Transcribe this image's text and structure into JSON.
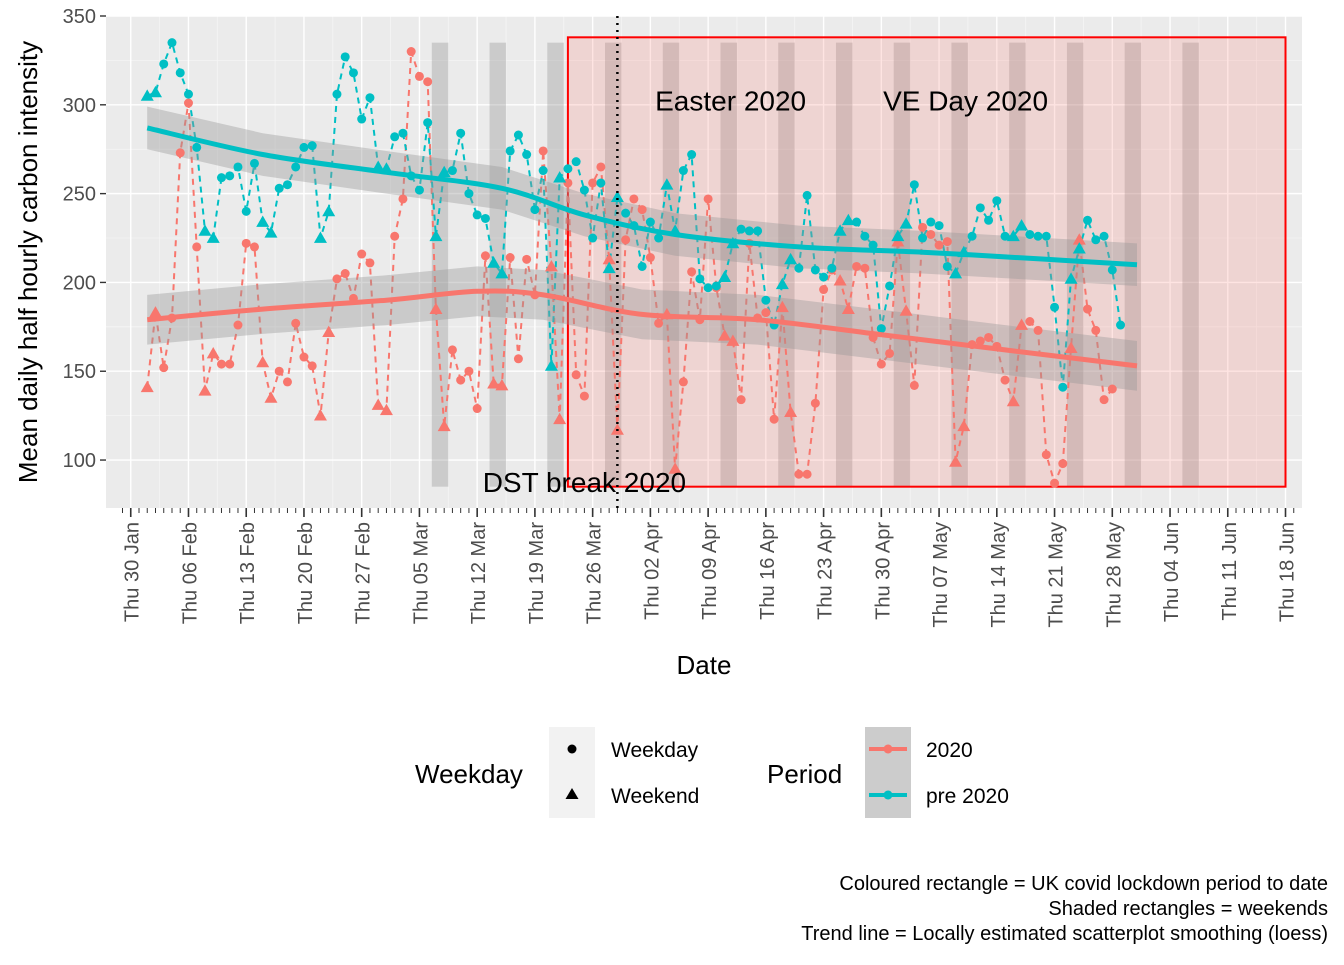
{
  "chart_data": {
    "type": "line",
    "x_axis": {
      "label": "Date",
      "range": [
        "2020-01-27",
        "2020-06-20"
      ],
      "ticks": [
        "2020-01-30",
        "2020-02-06",
        "2020-02-13",
        "2020-02-20",
        "2020-02-27",
        "2020-03-05",
        "2020-03-12",
        "2020-03-19",
        "2020-03-26",
        "2020-04-02",
        "2020-04-09",
        "2020-04-16",
        "2020-04-23",
        "2020-04-30",
        "2020-05-07",
        "2020-05-14",
        "2020-05-21",
        "2020-05-28",
        "2020-06-04",
        "2020-06-11",
        "2020-06-18"
      ],
      "tick_labels": [
        "Thu 30 Jan",
        "Thu 06 Feb",
        "Thu 13 Feb",
        "Thu 20 Feb",
        "Thu 27 Feb",
        "Thu 05 Mar",
        "Thu 12 Mar",
        "Thu 19 Mar",
        "Thu 26 Mar",
        "Thu 02 Apr",
        "Thu 09 Apr",
        "Thu 16 Apr",
        "Thu 23 Apr",
        "Thu 30 Apr",
        "Thu 07 May",
        "Thu 14 May",
        "Thu 21 May",
        "Thu 28 May",
        "Thu 04 Jun",
        "Thu 11 Jun",
        "Thu 18 Jun"
      ]
    },
    "y_axis": {
      "label": "Mean daily half hourly carbon intensity",
      "range": [
        73,
        350
      ],
      "ticks": [
        100,
        150,
        200,
        250,
        300,
        350
      ],
      "tick_labels": [
        "100",
        "150",
        "200",
        "250",
        "300",
        "350"
      ]
    },
    "grid": true,
    "start_date": "2020-02-01",
    "series": [
      {
        "name": "2020",
        "color": "#F8766D",
        "values": [
          141,
          183,
          152,
          180,
          273,
          301,
          220,
          139,
          160,
          154,
          154,
          176,
          222,
          220,
          155,
          135,
          150,
          144,
          177,
          158,
          153,
          125,
          172,
          202,
          205,
          191,
          216,
          211,
          131,
          128,
          226,
          247,
          330,
          316,
          313,
          185,
          119,
          162,
          145,
          150,
          129,
          215,
          143,
          142,
          214,
          157,
          213,
          193,
          274,
          209,
          123,
          256,
          148,
          136,
          256,
          265,
          213,
          117,
          224,
          247,
          241,
          214,
          177,
          182,
          95,
          144,
          206,
          179,
          247,
          197,
          170,
          167,
          134,
          222,
          180,
          183,
          123,
          186,
          127,
          92,
          92,
          132,
          196,
          207,
          201,
          185,
          209,
          208,
          169,
          154,
          160,
          223,
          184,
          142,
          231,
          227,
          221,
          223,
          99,
          119,
          165,
          167,
          169,
          164,
          145,
          133,
          176,
          178,
          173,
          103,
          87,
          98,
          163,
          224,
          185,
          173,
          134,
          140
        ]
      },
      {
        "name": "pre 2020",
        "color": "#00BFC4",
        "values": [
          305,
          307,
          323,
          335,
          318,
          306,
          276,
          229,
          225,
          259,
          260,
          265,
          240,
          267,
          234,
          228,
          253,
          255,
          265,
          276,
          277,
          225,
          240,
          306,
          327,
          318,
          292,
          304,
          265,
          264,
          282,
          284,
          260,
          252,
          290,
          226,
          262,
          263,
          284,
          250,
          238,
          236,
          211,
          205,
          274,
          283,
          272,
          241,
          263,
          153,
          259,
          264,
          268,
          252,
          225,
          256,
          208,
          248,
          239,
          232,
          209,
          234,
          225,
          255,
          229,
          263,
          272,
          202,
          197,
          198,
          203,
          222,
          230,
          229,
          229,
          190,
          176,
          199,
          213,
          208,
          249,
          207,
          203,
          208,
          229,
          235,
          234,
          226,
          221,
          174,
          198,
          226,
          233,
          255,
          225,
          234,
          232,
          209,
          205,
          217,
          226,
          242,
          235,
          246,
          226,
          226,
          232,
          227,
          226,
          226,
          186,
          141,
          202,
          219,
          235,
          224,
          226,
          207,
          176
        ]
      }
    ],
    "point_shapes": {
      "weekday": "circle",
      "weekend": "triangle"
    },
    "trend_lines": {
      "method": "loess",
      "2020": {
        "x": [
          "2020-02-01",
          "2020-02-15",
          "2020-03-01",
          "2020-03-12",
          "2020-03-20",
          "2020-04-01",
          "2020-04-15",
          "2020-05-01",
          "2020-05-15",
          "2020-05-31"
        ],
        "y": [
          179,
          185,
          190,
          195,
          193,
          182,
          179,
          170,
          162,
          153
        ]
      },
      "pre 2020": {
        "x": [
          "2020-02-01",
          "2020-02-15",
          "2020-03-01",
          "2020-03-15",
          "2020-03-25",
          "2020-04-05",
          "2020-04-20",
          "2020-05-05",
          "2020-05-20",
          "2020-05-31"
        ],
        "y": [
          287,
          272,
          262,
          253,
          238,
          227,
          220,
          217,
          213,
          210
        ]
      }
    },
    "lockdown_period": {
      "start": "2020-03-23",
      "end": "2020-06-18",
      "y_range": [
        85,
        338
      ]
    },
    "weekend_bands": {
      "first_saturday": "2020-03-07",
      "last_saturday": "2020-06-06",
      "y_range": [
        85,
        335
      ]
    },
    "dst_break": "2020-03-29",
    "annotations": [
      {
        "text": "Easter 2020",
        "x": "2020-04-05",
        "y": 302
      },
      {
        "text": "VE Day 2020",
        "x": "2020-05-03",
        "y": 302
      },
      {
        "text": "DST break 2020",
        "x": "2020-03-25",
        "y": 87
      }
    ],
    "legends": {
      "shape": {
        "title": "Weekday",
        "items": [
          "Weekday",
          "Weekend"
        ]
      },
      "color": {
        "title": "Period",
        "items": [
          "2020",
          "pre 2020"
        ]
      }
    },
    "caption": [
      "Coloured rectangle = UK covid lockdown period to date",
      "Shaded rectangles = weekends",
      "Trend line = Locally estimated scatterplot smoothing (loess)"
    ]
  }
}
